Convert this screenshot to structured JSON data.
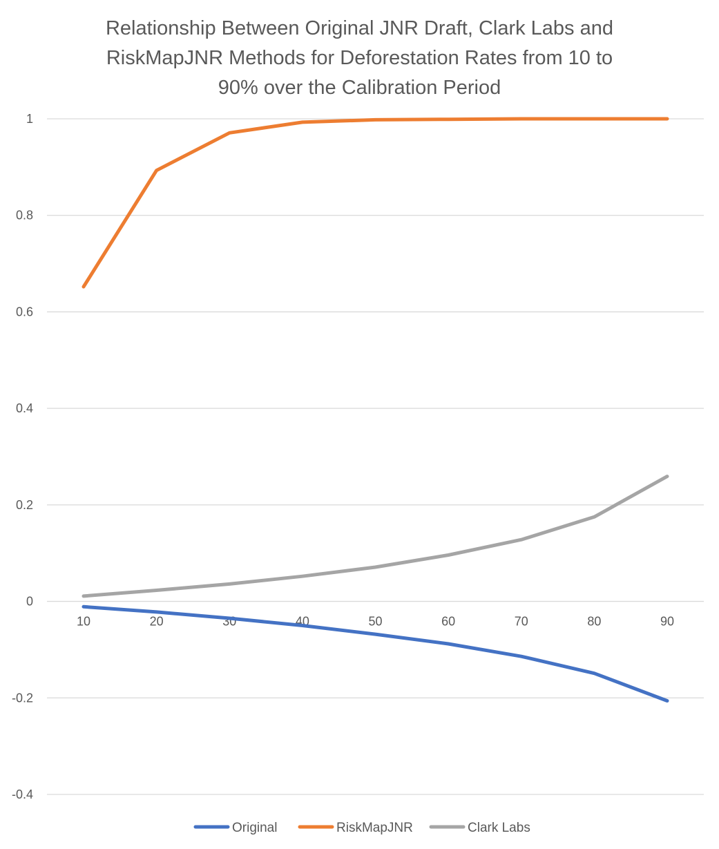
{
  "chart_data": {
    "type": "line",
    "title": "Relationship Between Original JNR Draft, Clark Labs and RiskMapJNR Methods for Deforestation Rates from 10 to 90% over the Calibration Period",
    "title_lines": [
      "Relationship Between Original JNR Draft, Clark Labs and",
      "RiskMapJNR Methods for Deforestation Rates from 10 to",
      "90% over the Calibration Period"
    ],
    "xlabel": "",
    "ylabel": "",
    "categories": [
      "10",
      "20",
      "30",
      "40",
      "50",
      "60",
      "70",
      "80",
      "90"
    ],
    "x": [
      10,
      20,
      30,
      40,
      50,
      60,
      70,
      80,
      90
    ],
    "ylim": [
      -0.4,
      1
    ],
    "yticks": [
      -0.4,
      -0.2,
      0,
      0.2,
      0.4,
      0.6,
      0.8,
      1
    ],
    "ytick_labels": [
      "-0.4",
      "-0.2",
      "0",
      "0.2",
      "0.4",
      "0.6",
      "0.8",
      "1"
    ],
    "grid": true,
    "legend_position": "bottom",
    "series": [
      {
        "name": "Original",
        "color": "#4472c4",
        "values": [
          -0.011,
          -0.022,
          -0.035,
          -0.05,
          -0.068,
          -0.088,
          -0.114,
          -0.149,
          -0.206
        ]
      },
      {
        "name": "RiskMapJNR",
        "color": "#ed7d31",
        "values": [
          0.652,
          0.893,
          0.971,
          0.993,
          0.998,
          0.999,
          1.0,
          1.0,
          1.0
        ]
      },
      {
        "name": "Clark Labs",
        "color": "#a5a5a5",
        "values": [
          0.011,
          0.023,
          0.036,
          0.052,
          0.071,
          0.096,
          0.128,
          0.175,
          0.259
        ]
      }
    ]
  }
}
